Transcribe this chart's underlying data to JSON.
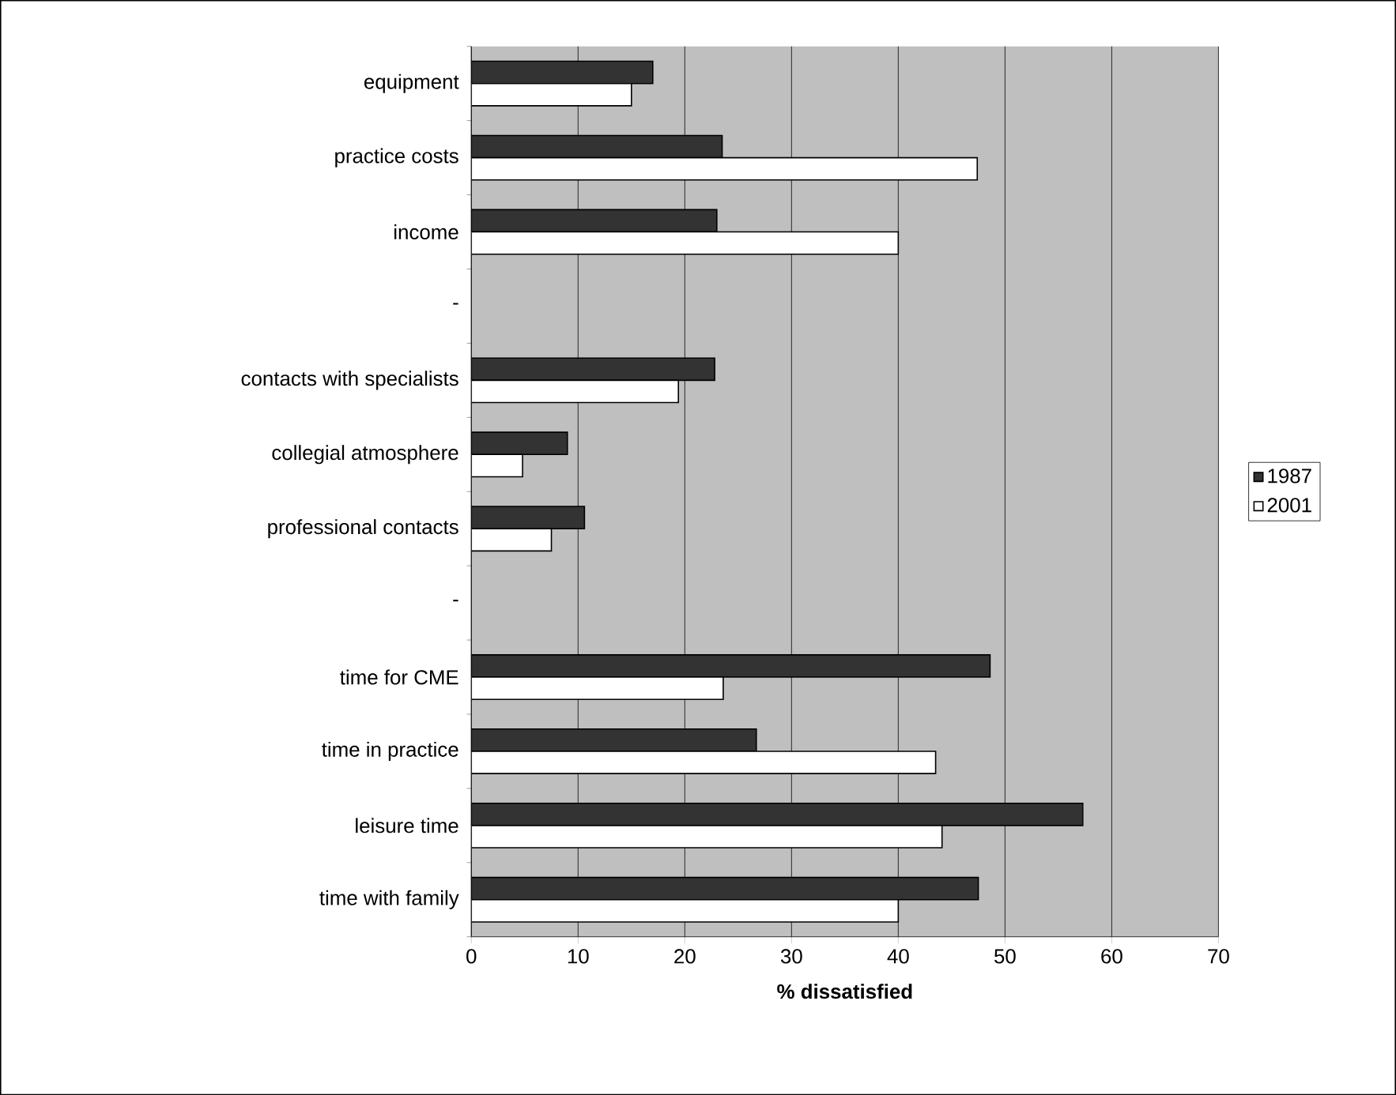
{
  "chart_data": {
    "type": "bar",
    "orientation": "horizontal",
    "xlabel": "**% dissatisfied**",
    "categories": [
      "equipment",
      "practice costs",
      "income",
      "-",
      "contacts with specialists",
      "collegial atmosphere",
      "professional contacts",
      "-",
      "time for CME",
      "time in practice",
      "leisure time",
      "time with family"
    ],
    "series": [
      {
        "name": "1987",
        "color": "#333333",
        "values": [
          17,
          23.5,
          23,
          null,
          22.8,
          9,
          10.6,
          null,
          48.6,
          26.7,
          57.3,
          47.5
        ]
      },
      {
        "name": "2001",
        "color": "#ffffff",
        "values": [
          15,
          47.4,
          40,
          null,
          19.4,
          4.8,
          7.5,
          null,
          23.6,
          43.5,
          44.1,
          40
        ]
      }
    ],
    "xlim": [
      0,
      70
    ],
    "xticks": [
      0,
      10,
      20,
      30,
      40,
      50,
      60,
      70
    ],
    "grid": "x",
    "legend": "right"
  }
}
